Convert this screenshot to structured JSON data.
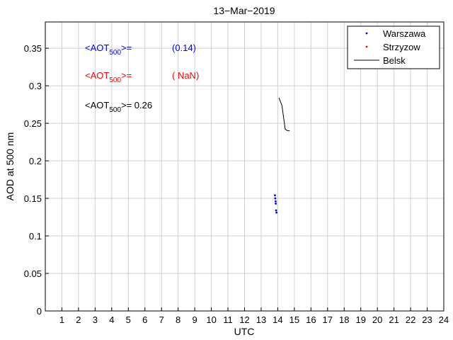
{
  "chart_data": {
    "type": "scatter",
    "title": "13−Mar−2019",
    "xlabel": "UTC",
    "ylabel": "AOD at 500 nm",
    "xlim": [
      0,
      24
    ],
    "ylim": [
      0,
      0.385
    ],
    "xticks": [
      "1",
      "2",
      "3",
      "4",
      "5",
      "6",
      "7",
      "8",
      "9",
      "10",
      "11",
      "12",
      "13",
      "14",
      "15",
      "16",
      "17",
      "18",
      "19",
      "20",
      "21",
      "22",
      "23",
      "24"
    ],
    "yticks": [
      "0",
      "0.05",
      "0.1",
      "0.15",
      "0.2",
      "0.25",
      "0.3",
      "0.35"
    ],
    "grid": true,
    "legend_position": "top-right",
    "annotations": [
      {
        "prefix": "<AOT",
        "sub": "500",
        "suffix": ">=",
        "value": "(0.14)",
        "color": "#0000ff"
      },
      {
        "prefix": "<AOT",
        "sub": "500",
        "suffix": ">=",
        "value": "( NaN)",
        "color": "#ff0000"
      },
      {
        "prefix": "<AOT",
        "sub": "500",
        "suffix": ">= 0.26",
        "value": "",
        "color": "#000000"
      }
    ],
    "series": [
      {
        "name": "Warszawa",
        "style": "points",
        "color": "#0000ff",
        "x": [
          13.83,
          13.85,
          13.87,
          13.88,
          13.9,
          13.92
        ],
        "y": [
          0.154,
          0.15,
          0.146,
          0.143,
          0.134,
          0.131
        ]
      },
      {
        "name": "Strzyzow",
        "style": "points",
        "color": "#ff0000",
        "x": [],
        "y": []
      },
      {
        "name": "Belsk",
        "style": "line",
        "color": "#000000",
        "x": [
          14.07,
          14.25,
          14.45,
          14.6,
          14.72
        ],
        "y": [
          0.284,
          0.274,
          0.242,
          0.24,
          0.24
        ]
      }
    ]
  }
}
